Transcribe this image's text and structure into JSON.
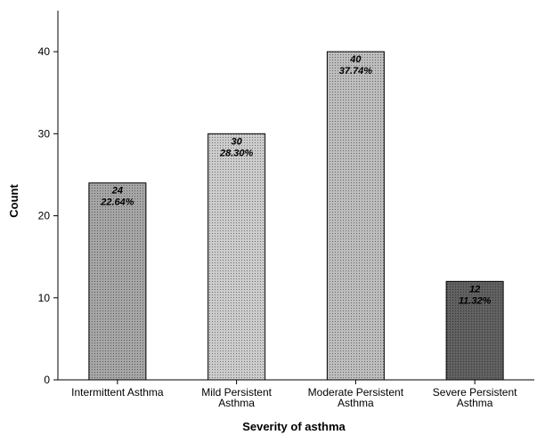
{
  "chart_data": {
    "type": "bar",
    "categories": [
      "Intermittent Asthma",
      "Mild Persistent Asthma",
      "Moderate Persistent Asthma",
      "Severe Persistent Asthma"
    ],
    "category_label_lines": [
      [
        "Intermittent Asthma"
      ],
      [
        "Mild Persistent",
        "Asthma"
      ],
      [
        "Moderate Persistent",
        "Asthma"
      ],
      [
        "Severe Persistent",
        "Asthma"
      ]
    ],
    "values": [
      24,
      30,
      40,
      12
    ],
    "data_labels": [
      {
        "count": "24",
        "percent": "22.64%"
      },
      {
        "count": "30",
        "percent": "28.30%"
      },
      {
        "count": "40",
        "percent": "37.74%"
      },
      {
        "count": "12",
        "percent": "11.32%"
      }
    ],
    "bar_colors": [
      "#a6a6a6",
      "#cccccc",
      "#bdbdbd",
      "#616161"
    ],
    "title": "",
    "xlabel": "Severity of asthma",
    "ylabel": "Count",
    "ylim": [
      0,
      45
    ],
    "yticks": [
      0,
      10,
      20,
      30,
      40
    ],
    "grid": false,
    "legend": "none"
  }
}
